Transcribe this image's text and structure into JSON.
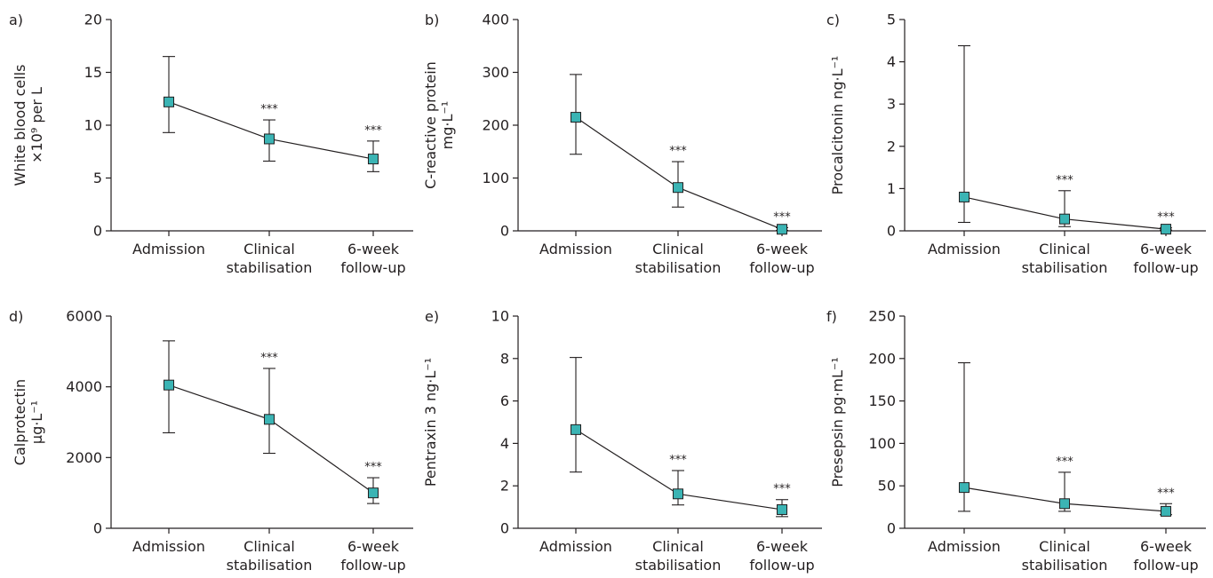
{
  "colors": {
    "marker": "#3bb4b4",
    "ink": "#231f20"
  },
  "chart_data": [
    {
      "type": "line",
      "panel": "a)",
      "ylabel": [
        "White blood cells",
        "×10⁹ per L"
      ],
      "ylim": [
        0,
        20
      ],
      "yticks": [
        0,
        5,
        10,
        15,
        20
      ],
      "categories": [
        [
          "Admission"
        ],
        [
          "Clinical",
          "stabilisation"
        ],
        [
          "6-week",
          "follow-up"
        ]
      ],
      "values": [
        12.2,
        8.7,
        6.8
      ],
      "err_low": [
        9.3,
        6.6,
        5.6
      ],
      "err_high": [
        16.5,
        10.5,
        8.5
      ],
      "significance": [
        "",
        "***",
        "***"
      ]
    },
    {
      "type": "line",
      "panel": "b)",
      "ylabel": [
        "C-reactive protein",
        "mg·L⁻¹"
      ],
      "ylim": [
        0,
        400
      ],
      "yticks": [
        0,
        100,
        200,
        300,
        400
      ],
      "categories": [
        [
          "Admission"
        ],
        [
          "Clinical",
          "stabilisation"
        ],
        [
          "6-week",
          "follow-up"
        ]
      ],
      "values": [
        215,
        82,
        3
      ],
      "err_low": [
        145,
        45,
        1
      ],
      "err_high": [
        296,
        131,
        6
      ],
      "significance": [
        "",
        "***",
        "***"
      ]
    },
    {
      "type": "line",
      "panel": "c)",
      "ylabel": [
        "Procalcitonin  ng·L⁻¹"
      ],
      "ylim": [
        0,
        5
      ],
      "yticks": [
        0,
        1,
        2,
        3,
        4,
        5
      ],
      "categories": [
        [
          "Admission"
        ],
        [
          "Clinical",
          "stabilisation"
        ],
        [
          "6-week",
          "follow-up"
        ]
      ],
      "values": [
        0.8,
        0.28,
        0.04
      ],
      "err_low": [
        0.2,
        0.1,
        0.02
      ],
      "err_high": [
        4.38,
        0.95,
        0.07
      ],
      "significance": [
        "",
        "***",
        "***"
      ]
    },
    {
      "type": "line",
      "panel": "d)",
      "ylabel": [
        "Calprotectin",
        "µg·L⁻¹"
      ],
      "ylim": [
        0,
        6000
      ],
      "yticks": [
        0,
        2000,
        4000,
        6000
      ],
      "categories": [
        [
          "Admission"
        ],
        [
          "Clinical",
          "stabilisation"
        ],
        [
          "6-week",
          "follow-up"
        ]
      ],
      "values": [
        4050,
        3080,
        1000
      ],
      "err_low": [
        2700,
        2120,
        700
      ],
      "err_high": [
        5300,
        4520,
        1430
      ],
      "significance": [
        "",
        "***",
        "***"
      ]
    },
    {
      "type": "line",
      "panel": "e)",
      "ylabel": [
        "Pentraxin 3 ng·L⁻¹"
      ],
      "ylim": [
        0,
        10
      ],
      "yticks": [
        0,
        2,
        4,
        6,
        8,
        10
      ],
      "categories": [
        [
          "Admission"
        ],
        [
          "Clinical",
          "stabilisation"
        ],
        [
          "6-week",
          "follow-up"
        ]
      ],
      "values": [
        4.65,
        1.62,
        0.88
      ],
      "err_low": [
        2.65,
        1.1,
        0.55
      ],
      "err_high": [
        8.05,
        2.72,
        1.35
      ],
      "significance": [
        "",
        "***",
        "***"
      ]
    },
    {
      "type": "line",
      "panel": "f)",
      "ylabel": [
        "Presepsin  pg·mL⁻¹"
      ],
      "ylim": [
        0,
        250
      ],
      "yticks": [
        0,
        50,
        100,
        150,
        200,
        250
      ],
      "categories": [
        [
          "Admission"
        ],
        [
          "Clinical",
          "stabilisation"
        ],
        [
          "6-week",
          "follow-up"
        ]
      ],
      "values": [
        48,
        29,
        20
      ],
      "err_low": [
        20,
        20,
        16
      ],
      "err_high": [
        195,
        66,
        29
      ],
      "significance": [
        "",
        "***",
        "***"
      ]
    }
  ]
}
